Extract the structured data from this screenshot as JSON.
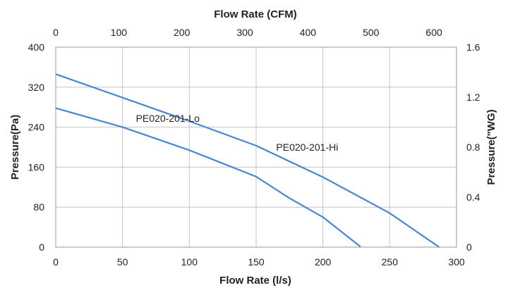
{
  "chart_data": {
    "type": "line",
    "title": "",
    "xlabel": "Flow Rate (l/s)",
    "ylabel": "Pressure(Pa)",
    "x2label": "Flow Rate (CFM)",
    "y2label": "Pressure(\"WG)",
    "xlim": [
      0,
      300
    ],
    "ylim": [
      0,
      400
    ],
    "x2lim": [
      0,
      635.7
    ],
    "y2lim": [
      0,
      1.6
    ],
    "xticks": [
      "0",
      "50",
      "100",
      "150",
      "200",
      "250",
      "300"
    ],
    "yticks": [
      "0",
      "80",
      "160",
      "240",
      "320",
      "400"
    ],
    "x2ticks": [
      "0",
      "100",
      "200",
      "300",
      "400",
      "500",
      "600"
    ],
    "y2ticks": [
      "0",
      "0.4",
      "0.8",
      "1.2",
      "1.6"
    ],
    "grid": true,
    "series_color": "#4a86d0",
    "series": [
      {
        "name": "PE020-201-Hi",
        "x": [
          0,
          50,
          100,
          150,
          200,
          250,
          287
        ],
        "y": [
          346,
          299,
          252,
          203,
          140,
          68,
          0
        ]
      },
      {
        "name": "PE020-201-Lo",
        "x": [
          0,
          50,
          100,
          150,
          175,
          200,
          228
        ],
        "y": [
          278,
          240,
          194,
          141,
          98,
          60,
          1
        ]
      }
    ]
  }
}
